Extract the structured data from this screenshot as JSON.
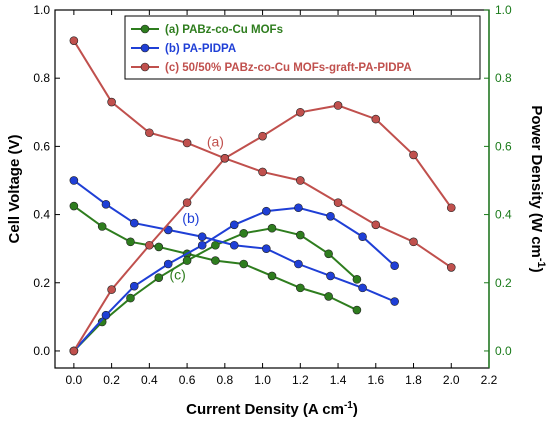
{
  "chart_data": {
    "type": "line",
    "x_axis": {
      "label": "Current Density (A cm",
      "label_sup": "-1",
      "label_close": ")",
      "range": [
        -0.1,
        2.2
      ],
      "ticks": [
        0.0,
        0.2,
        0.4,
        0.6,
        0.8,
        1.0,
        1.2,
        1.4,
        1.6,
        1.8,
        2.0,
        2.2
      ]
    },
    "y_left": {
      "label": "Cell Voltage (V)",
      "range": [
        -0.05,
        1.0
      ],
      "ticks": [
        0.0,
        0.2,
        0.4,
        0.6,
        0.8,
        1.0
      ],
      "color": "#000000"
    },
    "y_right": {
      "label": "Power Density (W cm",
      "label_sup": "-1",
      "label_close": ")",
      "range": [
        -0.05,
        1.0
      ],
      "ticks": [
        0.0,
        0.2,
        0.4,
        0.6,
        0.8,
        1.0
      ],
      "color": "#1a7a1a"
    },
    "legend_position": "top-left",
    "series": [
      {
        "name": "(a) PABz-co-Cu MOFs",
        "color": "#2e7d1e",
        "voltage": {
          "x": [
            0.0,
            0.15,
            0.3,
            0.45,
            0.6,
            0.75,
            0.9,
            1.05,
            1.2,
            1.35,
            1.5
          ],
          "y": [
            0.425,
            0.365,
            0.32,
            0.305,
            0.285,
            0.265,
            0.255,
            0.22,
            0.185,
            0.16,
            0.12
          ]
        },
        "power": {
          "x": [
            0.0,
            0.15,
            0.3,
            0.45,
            0.6,
            0.75,
            0.9,
            1.05,
            1.2,
            1.35,
            1.5
          ],
          "y": [
            0.0,
            0.085,
            0.155,
            0.215,
            0.265,
            0.31,
            0.345,
            0.36,
            0.34,
            0.285,
            0.21
          ]
        }
      },
      {
        "name": "(b) PA-PIDPA",
        "color": "#1f3fd6",
        "voltage": {
          "x": [
            0.0,
            0.17,
            0.32,
            0.5,
            0.68,
            0.85,
            1.02,
            1.19,
            1.36,
            1.53,
            1.7
          ],
          "y": [
            0.5,
            0.43,
            0.375,
            0.355,
            0.335,
            0.31,
            0.3,
            0.255,
            0.22,
            0.185,
            0.145
          ]
        },
        "power": {
          "x": [
            0.0,
            0.17,
            0.32,
            0.5,
            0.68,
            0.85,
            1.02,
            1.19,
            1.36,
            1.53,
            1.7
          ],
          "y": [
            0.0,
            0.105,
            0.19,
            0.255,
            0.31,
            0.37,
            0.41,
            0.42,
            0.395,
            0.335,
            0.25
          ]
        }
      },
      {
        "name": "(c) 50/50% PABz-co-Cu MOFs-graft-PA-PIDPA",
        "color": "#c0504d",
        "voltage": {
          "x": [
            0.0,
            0.2,
            0.4,
            0.6,
            0.8,
            1.0,
            1.2,
            1.4,
            1.6,
            1.8,
            2.0
          ],
          "y": [
            0.91,
            0.73,
            0.64,
            0.61,
            0.565,
            0.525,
            0.5,
            0.435,
            0.37,
            0.32,
            0.245
          ]
        },
        "power": {
          "x": [
            0.0,
            0.2,
            0.4,
            0.6,
            0.8,
            1.0,
            1.2,
            1.4,
            1.6,
            1.8,
            2.0
          ],
          "y": [
            0.0,
            0.18,
            0.31,
            0.435,
            0.565,
            0.63,
            0.7,
            0.72,
            0.68,
            0.575,
            0.42
          ]
        }
      }
    ],
    "annotations": [
      {
        "text": "(a)",
        "x": 0.75,
        "y": 0.6,
        "color": "#c0504d"
      },
      {
        "text": "(b)",
        "x": 0.62,
        "y": 0.375,
        "color": "#1f3fd6"
      },
      {
        "text": "(c)",
        "x": 0.55,
        "y": 0.21,
        "color": "#2e7d1e"
      }
    ]
  }
}
